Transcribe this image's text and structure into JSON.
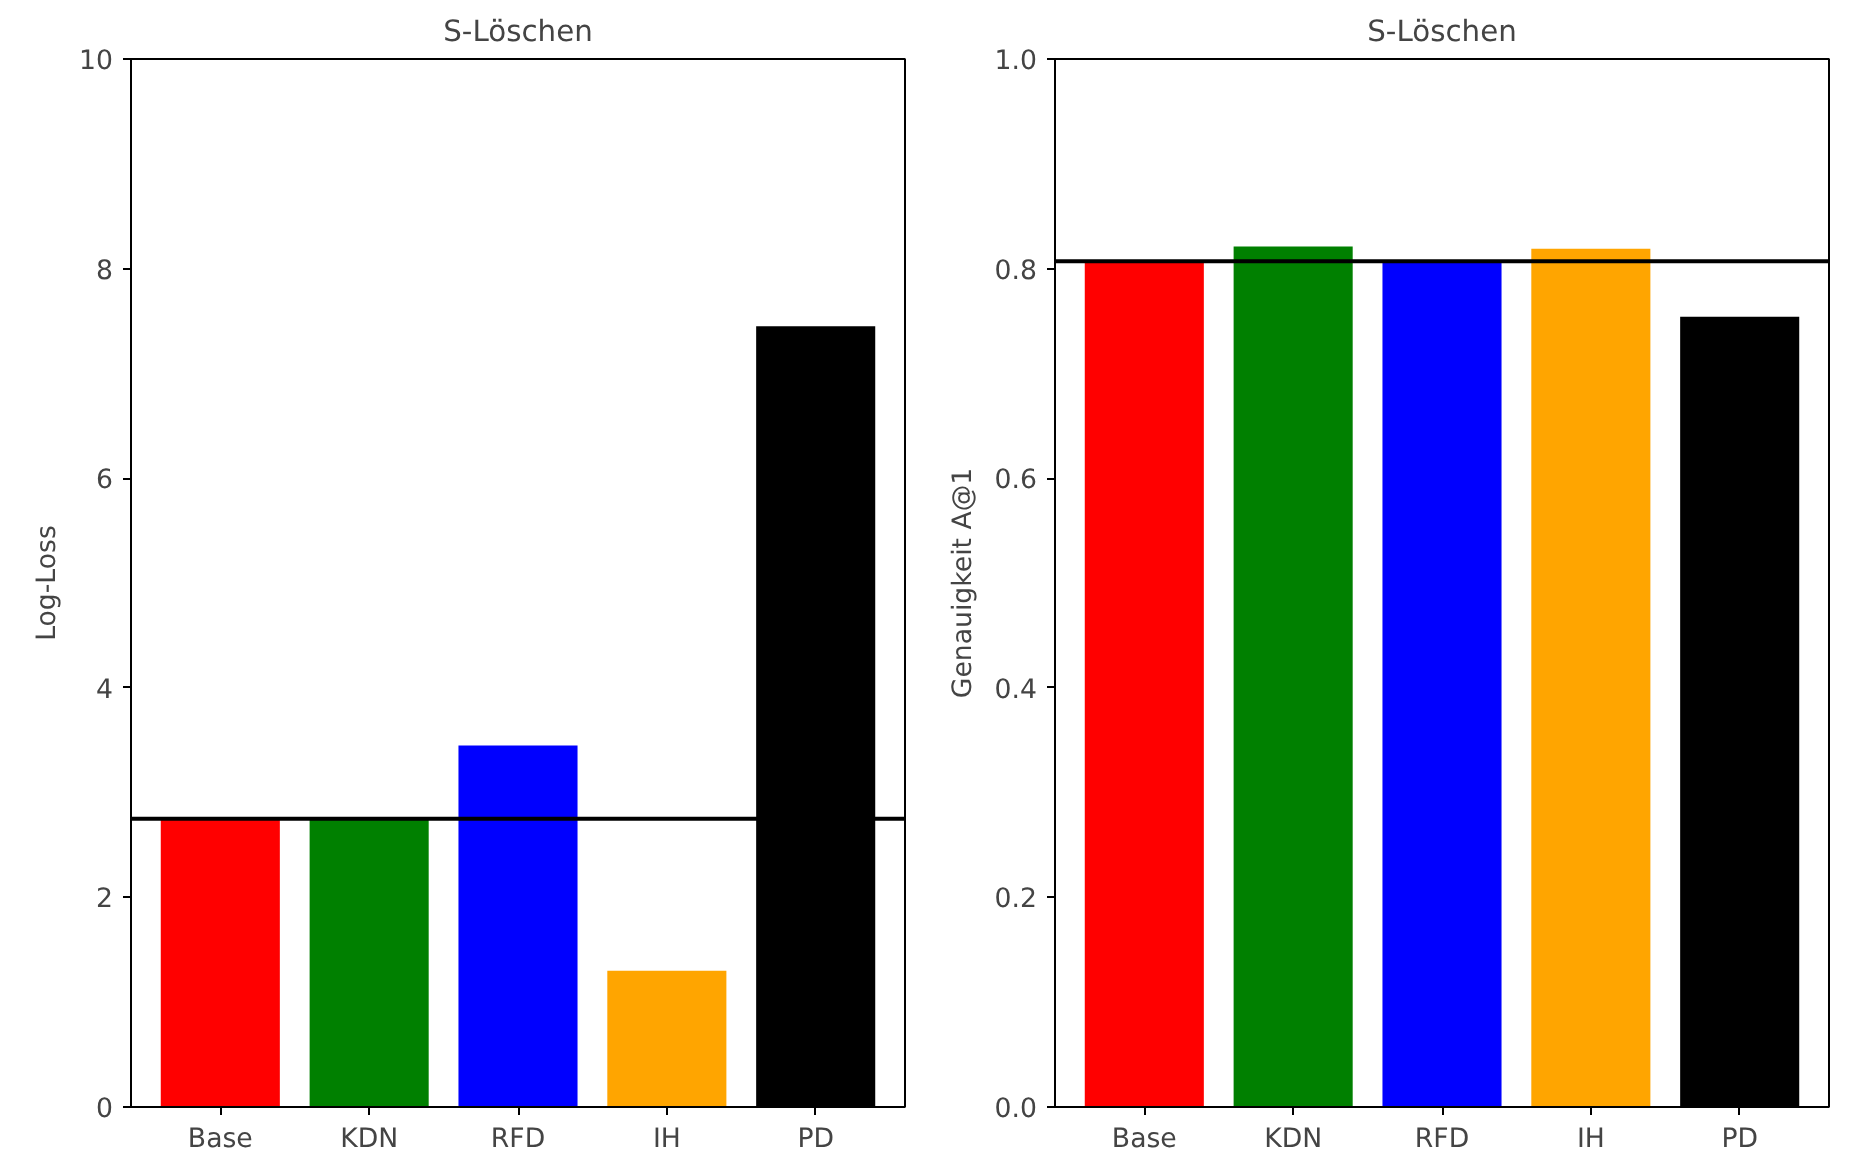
{
  "chart_data": [
    {
      "type": "bar",
      "title": "S-Löschen",
      "ylabel": "Log-Loss",
      "categories": [
        "Base",
        "KDN",
        "RFD",
        "IH",
        "PD"
      ],
      "values": [
        2.75,
        2.75,
        3.45,
        1.3,
        7.45
      ],
      "colors": [
        "#ff0000",
        "#008000",
        "#0000ff",
        "#ffa500",
        "#000000"
      ],
      "ylim": [
        0,
        10
      ],
      "yticks": [
        0,
        2,
        4,
        6,
        8,
        10
      ],
      "ref_lines": [
        {
          "axis": "y",
          "value": 2.75,
          "color": "#000000"
        }
      ]
    },
    {
      "type": "bar",
      "title": "S-Löschen",
      "ylabel": "Genauigkeit A@1",
      "categories": [
        "Base",
        "KDN",
        "RFD",
        "IH",
        "PD"
      ],
      "values": [
        0.806,
        0.821,
        0.807,
        0.819,
        0.754
      ],
      "colors": [
        "#ff0000",
        "#008000",
        "#0000ff",
        "#ffa500",
        "#000000"
      ],
      "ylim": [
        0,
        1.0
      ],
      "yticks": [
        {
          "value": 0,
          "label": "0.0"
        },
        0.2,
        0.4,
        0.6,
        0.8,
        {
          "value": 1.0,
          "label": "1.0"
        }
      ],
      "ref_lines": [
        {
          "axis": "y",
          "value": 0.807,
          "color": "#000000"
        }
      ]
    }
  ]
}
